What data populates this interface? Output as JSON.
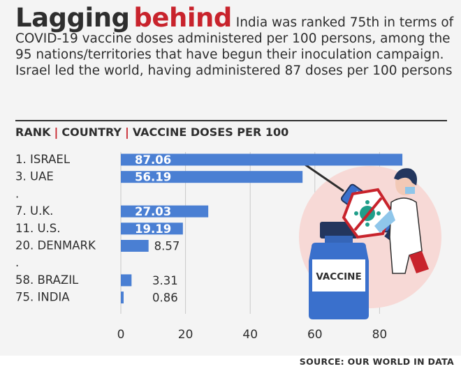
{
  "headline": {
    "title_part1": "Lagging",
    "title_part2": "behind",
    "text": "India was ranked 75th in terms of COVID-19 vaccine doses administered per 100 persons, among the 95 nations/territories that have begun their inoculation campaign. Israel led the world, having administered 87 doses per 100 persons"
  },
  "column_header": {
    "rank": "RANK",
    "country": "COUNTRY",
    "doses": "VACCINE DOSES PER 100"
  },
  "illustration": {
    "vial_label": "VACCINE"
  },
  "source": "SOURCE: OUR WORLD IN DATA",
  "colors": {
    "bar": "#4a7fd3",
    "accent": "#c8232c",
    "text": "#2e2e2e"
  },
  "chart_data": {
    "type": "bar",
    "orientation": "horizontal",
    "rows": [
      {
        "label": "1. ISRAEL",
        "value": 87.06,
        "value_label": "87.06"
      },
      {
        "label": "3. UAE",
        "value": 56.19,
        "value_label": "56.19"
      },
      {
        "label": ".",
        "value": null,
        "value_label": ""
      },
      {
        "label": "7. U.K.",
        "value": 27.03,
        "value_label": "27.03"
      },
      {
        "label": "11. U.S.",
        "value": 19.19,
        "value_label": "19.19"
      },
      {
        "label": "20. DENMARK",
        "value": 8.57,
        "value_label": "8.57"
      },
      {
        "label": ".",
        "value": null,
        "value_label": ""
      },
      {
        "label": "58. BRAZIL",
        "value": 3.31,
        "value_label": "3.31"
      },
      {
        "label": "75. INDIA",
        "value": 0.86,
        "value_label": "0.86"
      }
    ],
    "xlim": [
      0,
      90
    ],
    "xticks": [
      0,
      20,
      40,
      60,
      80
    ],
    "grid": "vertical"
  }
}
